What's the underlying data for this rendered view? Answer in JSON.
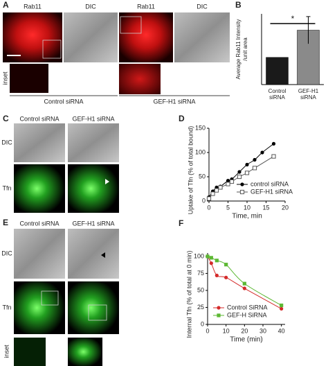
{
  "panel_a": {
    "letter": "A",
    "labels": [
      "Rab11",
      "DIC",
      "Rab11",
      "DIC"
    ],
    "row_label": "inset",
    "groups": [
      "Control siRNA",
      "GEF-H1 siRNA"
    ]
  },
  "panel_c": {
    "letter": "C",
    "columns": [
      "Control siRNA",
      "GEF-H1 siRNA"
    ],
    "rows": [
      "DIC",
      "Tfn"
    ]
  },
  "panel_e": {
    "letter": "E",
    "columns": [
      "Control siRNA",
      "GEF-H1 siRNA"
    ],
    "rows": [
      "DIC",
      "Tfn",
      "inset"
    ]
  },
  "chart_data": [
    {
      "letter": "B",
      "type": "bar",
      "y_label": [
        "Average Rab11 Intensity",
        "/unit area"
      ],
      "categories": [
        "Control siRNA",
        "GEF-H1 siRNA"
      ],
      "values": [
        1,
        2
      ],
      "errors": [
        null,
        0.5
      ],
      "colors": [
        "#1a1a1a",
        "#8a8a8a"
      ],
      "ylim": [
        0,
        2.6
      ],
      "annotation": "*"
    },
    {
      "letter": "D",
      "type": "line",
      "x_label": "Time, min",
      "y_label": "Uptake of Tfn (% of total bound)",
      "series": [
        {
          "name": "control siRNA",
          "color": "#000000",
          "marker": "filled-circle",
          "x": [
            0,
            1,
            2,
            3,
            5,
            6,
            8,
            10,
            12,
            14,
            17
          ],
          "values": [
            8,
            20,
            28,
            30,
            42,
            45,
            60,
            75,
            85,
            100,
            118
          ]
        },
        {
          "name": "GEF-H1 siRNA",
          "color": "#555555",
          "marker": "open-square",
          "x": [
            0,
            1,
            2,
            3,
            5,
            6,
            8,
            10,
            12,
            17
          ],
          "values": [
            5,
            15,
            22,
            28,
            35,
            40,
            50,
            58,
            68,
            92
          ]
        }
      ],
      "xlim": [
        0,
        20
      ],
      "ylim": [
        0,
        150
      ],
      "xticks": [
        0,
        5,
        10,
        15,
        20
      ],
      "yticks": [
        0,
        50,
        100,
        150
      ],
      "legend": "lower right"
    },
    {
      "letter": "F",
      "type": "line",
      "x_label": "Time (min)",
      "y_label": "Internal Tfn (% of total at 0 min)",
      "series": [
        {
          "name": "Control SiRNA",
          "color": "#d42a2a",
          "marker": "filled-circle",
          "x": [
            0,
            2,
            5,
            10,
            20,
            40
          ],
          "values": [
            100,
            90,
            72,
            69,
            53,
            23
          ]
        },
        {
          "name": "GEF-H SiRNA",
          "color": "#5cb833",
          "marker": "filled-square",
          "x": [
            0,
            2,
            5,
            10,
            20,
            40
          ],
          "values": [
            100,
            98,
            94,
            88,
            60,
            28
          ]
        }
      ],
      "xlim": [
        0,
        42
      ],
      "ylim": [
        0,
        105
      ],
      "xticks": [
        0,
        10,
        20,
        30,
        40
      ],
      "yticks": [
        0,
        25,
        50,
        75,
        100
      ],
      "legend": "lower left"
    }
  ]
}
